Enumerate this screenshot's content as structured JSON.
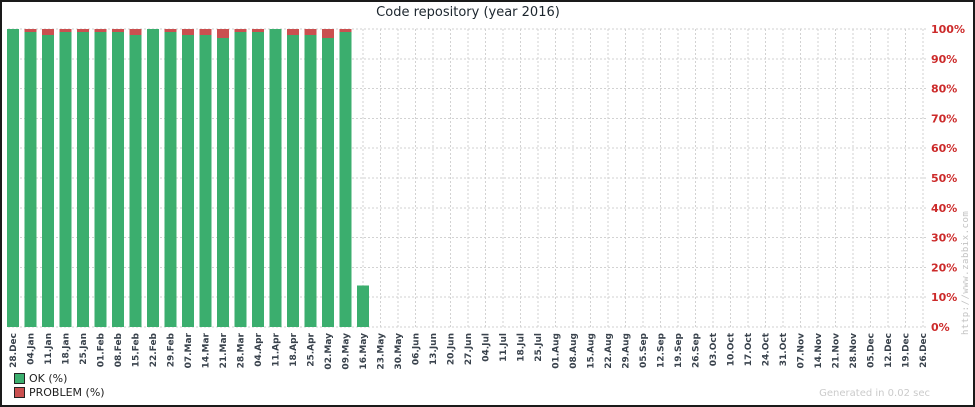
{
  "title": "Code repository (year 2016)",
  "legend": {
    "items": [
      {
        "label": "OK (%)",
        "color": "#3BAE6E"
      },
      {
        "label": "PROBLEM (%)",
        "color": "#CA5050"
      }
    ]
  },
  "footer": {
    "generated": "Generated in 0.02 sec",
    "watermark": "http://www.zabbix.com"
  },
  "colors": {
    "ok": "#3BAE6E",
    "problem": "#CA5050",
    "grid": "#d2d2d2",
    "y_label": "#CC2A2A",
    "x_label": "#39424C",
    "muted": "#C2C2C2",
    "border": "#1A1A1A"
  },
  "chart_data": {
    "type": "bar",
    "stacked": true,
    "title": "Code repository (year 2016)",
    "xlabel": "",
    "ylabel": "",
    "ylim": [
      0,
      100
    ],
    "grid": true,
    "legend_position": "bottom-left",
    "y_tick_labels": [
      "0%",
      "10%",
      "20%",
      "30%",
      "40%",
      "50%",
      "60%",
      "70%",
      "80%",
      "90%",
      "100%"
    ],
    "categories": [
      "28.Dec",
      "04.Jan",
      "11.Jan",
      "18.Jan",
      "25.Jan",
      "01.Feb",
      "08.Feb",
      "15.Feb",
      "22.Feb",
      "29.Feb",
      "07.Mar",
      "14.Mar",
      "21.Mar",
      "28.Mar",
      "04.Apr",
      "11.Apr",
      "18.Apr",
      "25.Apr",
      "02.May",
      "09.May",
      "16.May",
      "23.May",
      "30.May",
      "06.Jun",
      "13.Jun",
      "20.Jun",
      "27.Jun",
      "04.Jul",
      "11.Jul",
      "18.Jul",
      "25.Jul",
      "01.Aug",
      "08.Aug",
      "15.Aug",
      "22.Aug",
      "29.Aug",
      "05.Sep",
      "12.Sep",
      "19.Sep",
      "26.Sep",
      "03.Oct",
      "10.Oct",
      "17.Oct",
      "24.Oct",
      "31.Oct",
      "07.Nov",
      "14.Nov",
      "21.Nov",
      "28.Nov",
      "05.Dec",
      "12.Dec",
      "19.Dec",
      "26.Dec"
    ],
    "series": [
      {
        "name": "OK (%)",
        "color": "#3BAE6E",
        "values": [
          100,
          99,
          98,
          99,
          99,
          99,
          99,
          98,
          100,
          99,
          98,
          98,
          97,
          99,
          99,
          100,
          98,
          98,
          97,
          99,
          14,
          null,
          null,
          null,
          null,
          null,
          null,
          null,
          null,
          null,
          null,
          null,
          null,
          null,
          null,
          null,
          null,
          null,
          null,
          null,
          null,
          null,
          null,
          null,
          null,
          null,
          null,
          null,
          null,
          null,
          null,
          null,
          null
        ]
      },
      {
        "name": "PROBLEM (%)",
        "color": "#CA5050",
        "values": [
          0,
          1,
          2,
          1,
          1,
          1,
          1,
          2,
          0,
          1,
          2,
          2,
          3,
          1,
          1,
          0,
          2,
          2,
          3,
          1,
          0,
          null,
          null,
          null,
          null,
          null,
          null,
          null,
          null,
          null,
          null,
          null,
          null,
          null,
          null,
          null,
          null,
          null,
          null,
          null,
          null,
          null,
          null,
          null,
          null,
          null,
          null,
          null,
          null,
          null,
          null,
          null,
          null
        ]
      }
    ]
  }
}
